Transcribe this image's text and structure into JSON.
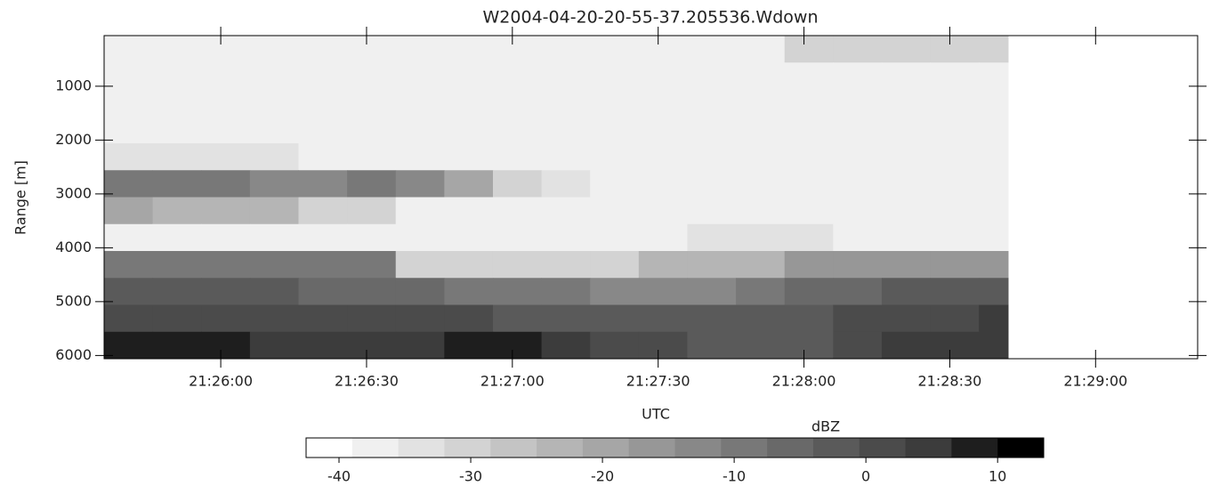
{
  "chart_data": {
    "type": "heatmap",
    "title": "W2004-04-20-20-55-37.205536.Wdown",
    "x_label": "UTC",
    "y_label": "Range [m]",
    "colorbar_label": "dBZ",
    "xlim": [
      77136,
      77361
    ],
    "xticks": [
      {
        "value": 77160,
        "label": "21:26:00"
      },
      {
        "value": 77190,
        "label": "21:26:30"
      },
      {
        "value": 77220,
        "label": "21:27:00"
      },
      {
        "value": 77250,
        "label": "21:27:30"
      },
      {
        "value": 77280,
        "label": "21:28:00"
      },
      {
        "value": 77310,
        "label": "21:28:30"
      },
      {
        "value": 77340,
        "label": "21:29:00"
      }
    ],
    "ylim": [
      6060,
      60
    ],
    "yticks": [
      1000,
      2000,
      3000,
      4000,
      5000,
      6000
    ],
    "x_edges": [
      77136,
      77146,
      77156,
      77166,
      77176,
      77186,
      77196,
      77206,
      77216,
      77226,
      77236,
      77246,
      77256,
      77266,
      77276,
      77286,
      77296,
      77306,
      77316,
      77322
    ],
    "y_edges": [
      60,
      560,
      1060,
      1560,
      2060,
      2560,
      3060,
      3560,
      4060,
      4560,
      5060,
      5560,
      6060
    ],
    "z": [
      [
        -38,
        -38,
        -38,
        -38,
        -38,
        -38,
        -38,
        -38,
        -38,
        -38,
        -38,
        -38,
        -38,
        -38,
        -32,
        -32,
        -32,
        -32,
        -32
      ],
      [
        -38,
        -38,
        -38,
        -38,
        -38,
        -38,
        -38,
        -38,
        -38,
        -38,
        -38,
        -38,
        -38,
        -38,
        -38,
        -38,
        -38,
        -38,
        -38
      ],
      [
        -38,
        -38,
        -38,
        -38,
        -38,
        -38,
        -38,
        -38,
        -38,
        -38,
        -38,
        -38,
        -38,
        -38,
        -38,
        -38,
        -38,
        -38,
        -38
      ],
      [
        -38,
        -38,
        -38,
        -38,
        -38,
        -38,
        -38,
        -38,
        -38,
        -38,
        -38,
        -38,
        -38,
        -38,
        -38,
        -38,
        -38,
        -38,
        -38
      ],
      [
        -34,
        -34,
        -34,
        -34,
        -38,
        -38,
        -38,
        -38,
        -38,
        -38,
        -38,
        -38,
        -38,
        -38,
        -38,
        -38,
        -38,
        -38,
        -38
      ],
      [
        -8,
        -8,
        -10,
        -12,
        -12,
        -10,
        -12,
        -20,
        -30,
        -33,
        -38,
        -38,
        -38,
        -38,
        -38,
        -38,
        -38,
        -38,
        -38
      ],
      [
        -20,
        -25,
        -22,
        -25,
        -30,
        -32,
        -38,
        -38,
        -38,
        -38,
        -38,
        -38,
        -38,
        -38,
        -38,
        -38,
        -38,
        -38,
        -38
      ],
      [
        -38,
        -38,
        -38,
        -38,
        -38,
        -38,
        -38,
        -38,
        -38,
        -38,
        -38,
        -38,
        -34,
        -34,
        -34,
        -38,
        -38,
        -38,
        -38
      ],
      [
        -10,
        -10,
        -10,
        -10,
        -10,
        -10,
        -30,
        -30,
        -30,
        -30,
        -30,
        -25,
        -25,
        -25,
        -15,
        -15,
        -15,
        -15,
        -15
      ],
      [
        -2,
        -3,
        -3,
        -4,
        -5,
        -5,
        -6,
        -8,
        -8,
        -10,
        -12,
        -12,
        -12,
        -10,
        -6,
        -5,
        -4,
        -4,
        -4
      ],
      [
        2,
        2,
        1,
        1,
        0,
        0,
        0,
        0,
        -2,
        -2,
        -3,
        -4,
        -4,
        -3,
        -2,
        0,
        2,
        2,
        3
      ],
      [
        8,
        8,
        7,
        6,
        6,
        6,
        6,
        7,
        8,
        6,
        2,
        0,
        -2,
        -4,
        -3,
        0,
        3,
        4,
        4
      ]
    ],
    "clim": [
      -42.5,
      13.5
    ],
    "colorbar_ticks": [
      -40,
      -30,
      -20,
      -10,
      0,
      10
    ],
    "colormap": [
      "#ffffff",
      "#f0f0f0",
      "#e2e2e2",
      "#d3d3d3",
      "#c4c4c4",
      "#b5b5b5",
      "#a6a6a6",
      "#979797",
      "#888888",
      "#787878",
      "#696969",
      "#5a5a5a",
      "#4b4b4b",
      "#3c3c3c",
      "#1e1e1e",
      "#000000"
    ]
  }
}
